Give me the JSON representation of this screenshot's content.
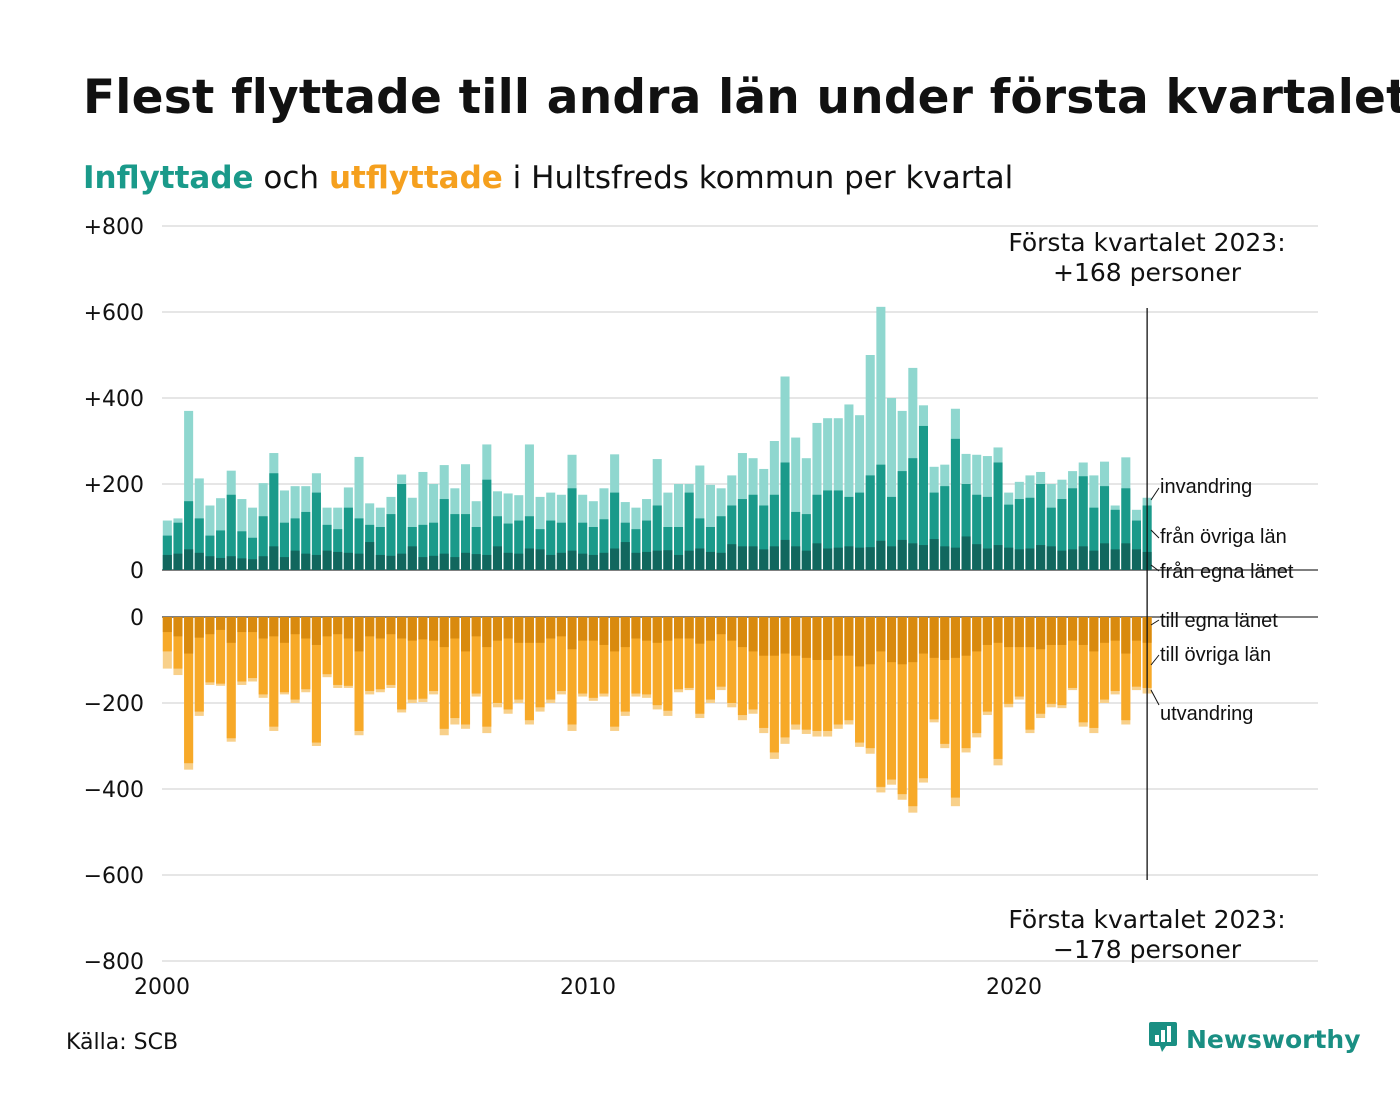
{
  "title": "Flest flyttade till andra län under första kvartalet",
  "subtitle": {
    "inflyttade": "Inflyttade",
    "och": "och",
    "utflyttade": "utflyttade",
    "rest": "i Hultsfreds kommun per kvartal"
  },
  "source": "Källa: SCB",
  "brand": "Newsworthy",
  "colors": {
    "invandring": "#8fd7cf",
    "fran_ovriga_lan": "#1a9a8a",
    "fran_egna_lanet": "#11675e",
    "till_egna_lanet": "#d98a0e",
    "till_ovriga_lan": "#f7a928",
    "utvandring": "#f8d08a"
  },
  "chart_data": {
    "type": "bar",
    "stacked": true,
    "xlim": [
      2000,
      2027.2
    ],
    "ylim": [
      -800,
      800
    ],
    "y_ticks": [
      "+800",
      "+600",
      "+400",
      "+200",
      "0",
      "0",
      "−200",
      "−400",
      "−600",
      "−800"
    ],
    "x_ticks": [
      "2000",
      "2010",
      "2020"
    ],
    "top_annotation": [
      "Första kvartalet 2023:",
      "+168 personer"
    ],
    "bottom_annotation": [
      "Första kvartalet 2023:",
      "−178 personer"
    ],
    "legend_labels": {
      "invandring": "invandring",
      "fran_ovriga_lan": "från övriga län",
      "fran_egna_lanet": "från egna länet",
      "till_egna_lanet": "till egna länet",
      "till_ovriga_lan": "till övriga län",
      "utvandring": "utvandring"
    },
    "start_quarter": "2000 Q1",
    "inflyttade": {
      "totals": [
        115,
        120,
        370,
        213,
        150,
        167,
        231,
        165,
        145,
        202,
        272,
        185,
        195,
        195,
        225,
        145,
        145,
        192,
        263,
        155,
        145,
        170,
        222,
        168,
        228,
        200,
        244,
        190,
        246,
        160,
        292,
        183,
        178,
        174,
        292,
        170,
        180,
        175,
        268,
        175,
        160,
        190,
        269,
        158,
        145,
        165,
        258,
        180,
        200,
        200,
        243,
        198,
        190,
        220,
        272,
        260,
        235,
        300,
        450,
        308,
        260,
        342,
        353,
        353,
        385,
        360,
        500,
        612,
        400,
        370,
        470,
        383,
        240,
        245,
        375,
        270,
        268,
        265,
        285,
        180,
        205,
        220,
        228,
        200,
        210,
        230,
        250,
        220,
        252,
        150,
        262,
        140,
        168
      ],
      "fran_egna_lanet": [
        35,
        38,
        48,
        40,
        32,
        28,
        32,
        27,
        25,
        32,
        55,
        30,
        45,
        38,
        35,
        45,
        42,
        40,
        38,
        65,
        35,
        33,
        38,
        55,
        30,
        33,
        38,
        30,
        40,
        37,
        35,
        55,
        40,
        38,
        50,
        48,
        35,
        40,
        45,
        38,
        35,
        40,
        50,
        65,
        40,
        42,
        45,
        46,
        35,
        45,
        50,
        42,
        40,
        60,
        55,
        55,
        48,
        55,
        70,
        55,
        45,
        62,
        50,
        52,
        55,
        52,
        53,
        68,
        55,
        70,
        62,
        58,
        72,
        55,
        52,
        78,
        60,
        50,
        58,
        52,
        48,
        50,
        58,
        55,
        45,
        48,
        55,
        45,
        62,
        48,
        62,
        48,
        42
      ],
      "fran_ovriga_lan": [
        80,
        110,
        160,
        120,
        80,
        92,
        175,
        90,
        75,
        125,
        225,
        110,
        120,
        135,
        180,
        105,
        95,
        145,
        120,
        105,
        100,
        130,
        200,
        100,
        105,
        110,
        165,
        130,
        130,
        100,
        210,
        125,
        108,
        115,
        125,
        95,
        115,
        110,
        190,
        110,
        100,
        118,
        180,
        110,
        95,
        115,
        150,
        100,
        100,
        180,
        120,
        100,
        125,
        150,
        165,
        175,
        150,
        175,
        250,
        135,
        130,
        175,
        185,
        185,
        170,
        180,
        220,
        245,
        170,
        230,
        260,
        335,
        180,
        195,
        305,
        200,
        175,
        170,
        250,
        152,
        165,
        168,
        200,
        145,
        165,
        190,
        218,
        145,
        195,
        140,
        190,
        115,
        150
      ]
    },
    "utflyttade": {
      "totals": [
        -120,
        -135,
        -355,
        -230,
        -158,
        -160,
        -290,
        -158,
        -150,
        -188,
        -265,
        -180,
        -200,
        -175,
        -300,
        -140,
        -165,
        -165,
        -275,
        -180,
        -175,
        -165,
        -222,
        -200,
        -198,
        -180,
        -275,
        -250,
        -260,
        -185,
        -270,
        -210,
        -225,
        -200,
        -250,
        -220,
        -200,
        -180,
        -265,
        -185,
        -195,
        -185,
        -265,
        -230,
        -185,
        -188,
        -215,
        -230,
        -175,
        -170,
        -235,
        -200,
        -170,
        -210,
        -240,
        -225,
        -270,
        -330,
        -295,
        -262,
        -272,
        -278,
        -278,
        -260,
        -250,
        -302,
        -318,
        -408,
        -390,
        -425,
        -455,
        -385,
        -245,
        -305,
        -440,
        -315,
        -280,
        -228,
        -345,
        -210,
        -192,
        -270,
        -235,
        -210,
        -212,
        -170,
        -255,
        -270,
        -200,
        -180,
        -250,
        -170,
        -178
      ],
      "till_egna_lanet": [
        -35,
        -45,
        -85,
        -48,
        -40,
        -30,
        -60,
        -35,
        -35,
        -50,
        -45,
        -60,
        -40,
        -50,
        -65,
        -45,
        -40,
        -50,
        -80,
        -45,
        -50,
        -40,
        -50,
        -55,
        -52,
        -55,
        -70,
        -50,
        -80,
        -45,
        -70,
        -55,
        -50,
        -60,
        -60,
        -60,
        -50,
        -45,
        -75,
        -55,
        -55,
        -65,
        -80,
        -70,
        -50,
        -55,
        -60,
        -55,
        -50,
        -50,
        -62,
        -55,
        -40,
        -55,
        -70,
        -80,
        -90,
        -90,
        -85,
        -90,
        -95,
        -100,
        -100,
        -90,
        -90,
        -115,
        -110,
        -80,
        -105,
        -110,
        -105,
        -85,
        -95,
        -100,
        -95,
        -90,
        -80,
        -65,
        -60,
        -70,
        -70,
        -70,
        -75,
        -65,
        -65,
        -55,
        -65,
        -80,
        -60,
        -55,
        -85,
        -55,
        -60
      ],
      "till_ovriga_lan": [
        -80,
        -120,
        -340,
        -220,
        -152,
        -155,
        -282,
        -150,
        -142,
        -180,
        -255,
        -175,
        -192,
        -168,
        -292,
        -133,
        -158,
        -160,
        -265,
        -172,
        -168,
        -158,
        -215,
        -192,
        -190,
        -172,
        -260,
        -235,
        -250,
        -178,
        -255,
        -200,
        -215,
        -192,
        -240,
        -210,
        -192,
        -172,
        -250,
        -178,
        -188,
        -178,
        -255,
        -220,
        -178,
        -180,
        -205,
        -218,
        -168,
        -165,
        -225,
        -192,
        -162,
        -200,
        -228,
        -215,
        -258,
        -315,
        -280,
        -250,
        -262,
        -265,
        -265,
        -250,
        -240,
        -292,
        -305,
        -395,
        -378,
        -412,
        -440,
        -375,
        -238,
        -295,
        -420,
        -305,
        -270,
        -220,
        -330,
        -202,
        -185,
        -262,
        -225,
        -202,
        -205,
        -165,
        -245,
        -258,
        -192,
        -172,
        -240,
        -162,
        -165
      ]
    }
  }
}
